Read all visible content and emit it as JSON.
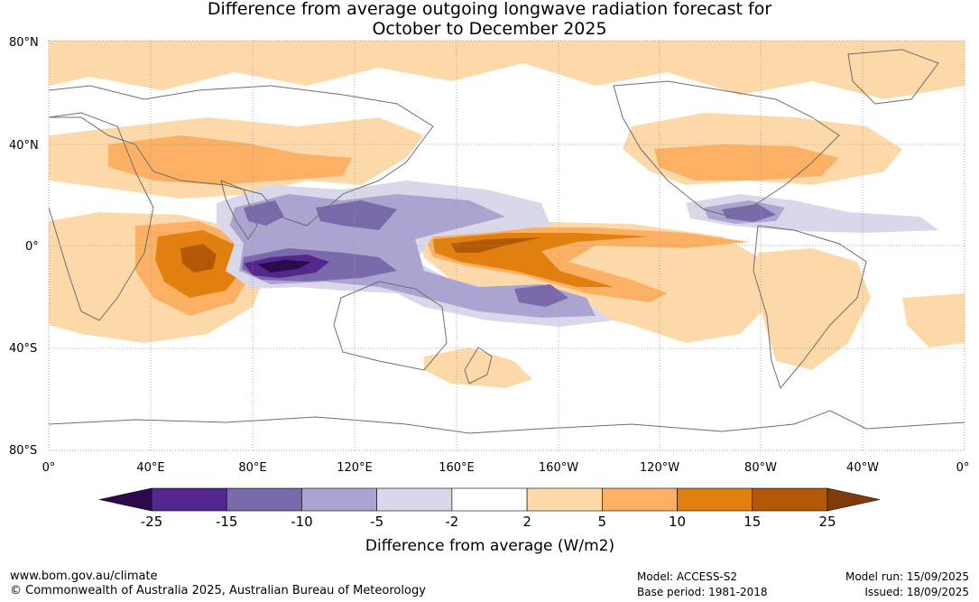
{
  "title_line1": "Difference from average outgoing longwave radiation forecast for",
  "title_line2": "October to December 2025",
  "lat_labels": [
    "80°N",
    "40°N",
    "0°",
    "40°S",
    "80°S"
  ],
  "lon_labels": [
    "0°",
    "40°E",
    "80°E",
    "120°E",
    "160°E",
    "160°W",
    "120°W",
    "80°W",
    "40°W",
    "0°"
  ],
  "colorbar": {
    "label": "Difference from average (W/m2)",
    "ticks": [
      "-25",
      "-15",
      "-10",
      "-5",
      "-2",
      "2",
      "5",
      "10",
      "15",
      "25"
    ],
    "colors": [
      "#2d0a4e",
      "#54278f",
      "#7a69ab",
      "#aba4d0",
      "#d9d8ea",
      "#ffffff",
      "#fdd9aa",
      "#fbb063",
      "#e2800f",
      "#b35806",
      "#7f3b08"
    ]
  },
  "footer": {
    "url": "www.bom.gov.au/climate",
    "copyright": "© Commonwealth of Australia 2025, Australian Bureau of Meteorology",
    "model": "Model: ACCESS-S2",
    "base_period": "Base period: 1981-2018",
    "model_run": "Model run: 15/09/2025",
    "issued": "Issued: 18/09/2025"
  }
}
